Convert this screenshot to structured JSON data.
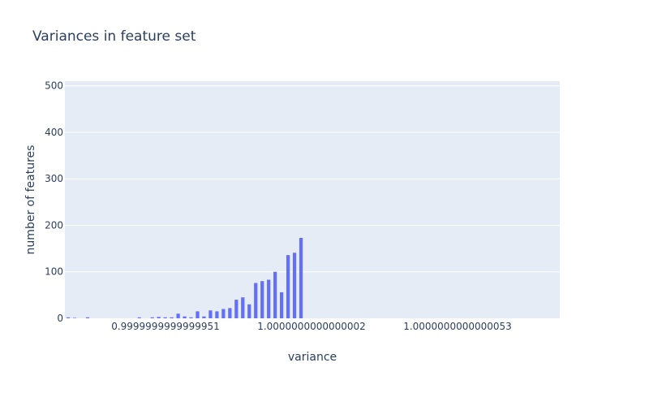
{
  "chart_data": {
    "type": "bar",
    "title": "Variances in feature set",
    "xlabel": "variance",
    "ylabel": "number of features",
    "ylim": [
      0,
      510
    ],
    "y_ticks": [
      0,
      100,
      200,
      300,
      400,
      500
    ],
    "x_tick_labels": [
      "0.9999999999999951",
      "1.0000000000000002",
      "1.0000000000000053"
    ],
    "values": [
      2,
      1,
      0,
      2,
      0,
      0,
      0,
      0,
      0,
      0,
      0,
      2,
      0,
      2,
      3,
      2,
      2,
      10,
      4,
      2,
      15,
      4,
      17,
      15,
      20,
      22,
      40,
      45,
      30,
      76,
      80,
      83,
      100,
      56,
      136,
      141,
      173
    ],
    "grid": true,
    "colors": {
      "bar": "#636efa",
      "plot_bg": "#e5ecf6",
      "grid": "#ffffff",
      "text": "#2a3f5f"
    }
  }
}
